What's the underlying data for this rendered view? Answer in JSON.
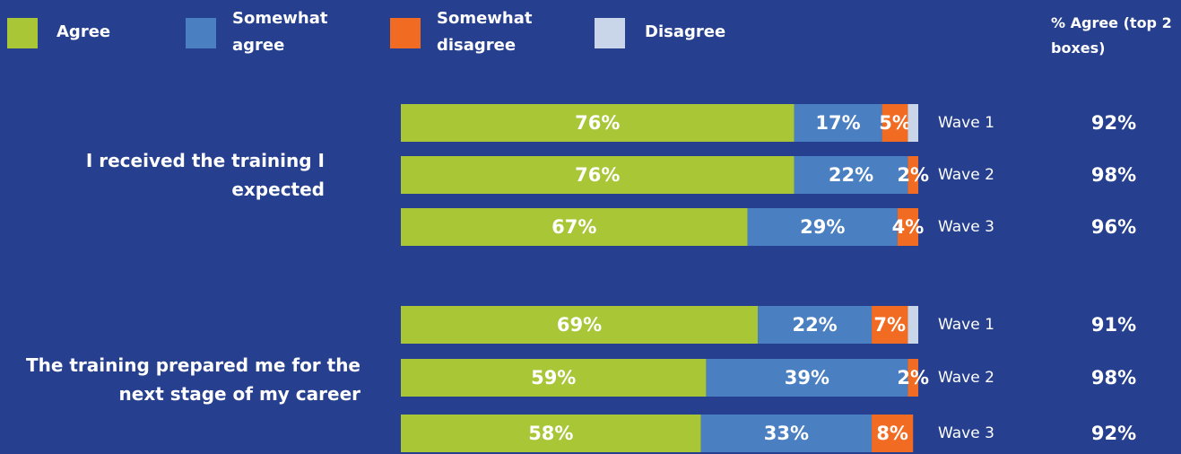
{
  "chart_data": {
    "type": "stacked-bar-horizontal",
    "categories": [
      "Wave 1",
      "Wave 2",
      "Wave 3",
      "Wave 1",
      "Wave 2",
      "Wave 3"
    ],
    "groups": [
      {
        "label": "I received the training I expected",
        "rows": [
          0,
          1,
          2
        ]
      },
      {
        "label": "The training prepared me for the next stage of my career",
        "rows": [
          3,
          4,
          5
        ]
      }
    ],
    "xlim": [
      0,
      100
    ],
    "series": [
      {
        "name": "Agree",
        "color": "#a8c636",
        "values": [
          76,
          76,
          67,
          69,
          59,
          58
        ],
        "value_labels": [
          "76%",
          "76%",
          "67%",
          "69%",
          "59%",
          "58%"
        ]
      },
      {
        "name": "Somewhat agree",
        "color": "#4a7fc1",
        "values": [
          17,
          22,
          29,
          22,
          39,
          33
        ],
        "value_labels": [
          "17%",
          "22%",
          "29%",
          "22%",
          "39%",
          "33%"
        ]
      },
      {
        "name": "Somewhat disagree",
        "color": "#f26b22",
        "values": [
          5,
          2,
          4,
          7,
          2,
          8
        ],
        "value_labels": [
          "5%",
          "2%",
          "4%",
          "7%",
          "2%",
          "8%"
        ]
      },
      {
        "name": "Disagree",
        "color": "#c9d6ea",
        "values": [
          2,
          0,
          0,
          2,
          0,
          0
        ]
      }
    ],
    "top2": {
      "title": "% Agree (top 2 boxes)",
      "values": [
        92,
        98,
        96,
        91,
        98,
        92
      ],
      "value_labels": [
        "92%",
        "98%",
        "96%",
        "91%",
        "98%",
        "92%"
      ]
    }
  }
}
